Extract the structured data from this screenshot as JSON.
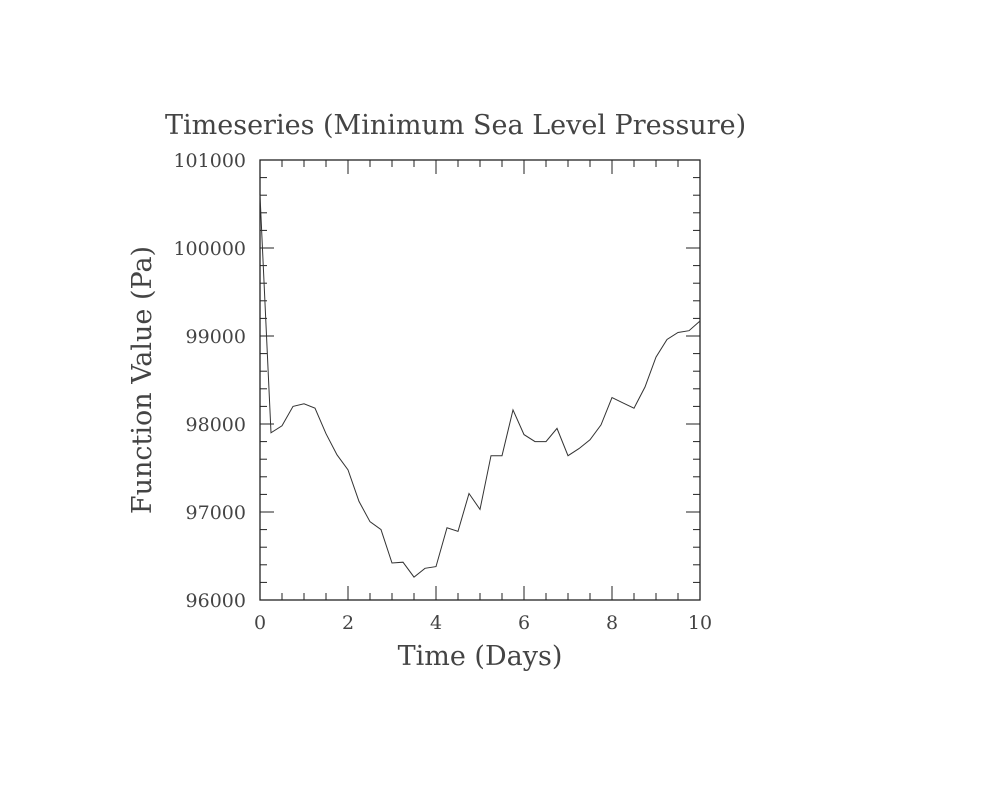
{
  "chart_data": {
    "type": "line",
    "title": "Timeseries (Minimum Sea Level Pressure)",
    "xlabel": "Time (Days)",
    "ylabel": "Function Value (Pa)",
    "xlim": [
      0,
      10
    ],
    "ylim": [
      96000,
      101000
    ],
    "x_ticks": [
      "0",
      "2",
      "4",
      "6",
      "8",
      "10"
    ],
    "y_ticks": [
      "96000",
      "97000",
      "98000",
      "99000",
      "100000",
      "101000"
    ],
    "grid": false,
    "line_color": "#333333",
    "axis_color": "#222222",
    "series": [
      {
        "x": [
          0,
          0.25,
          0.5,
          0.75,
          1.0,
          1.25,
          1.5,
          1.75,
          2.0,
          2.25,
          2.5,
          2.75,
          3.0,
          3.25,
          3.5,
          3.75,
          4.0,
          4.25,
          4.5,
          4.75,
          5.0,
          5.25,
          5.5,
          5.75,
          6.0,
          6.25,
          6.5,
          6.75,
          7.0,
          7.25,
          7.5,
          7.75,
          8.0,
          8.25,
          8.5,
          8.75,
          9.0,
          9.25,
          9.5,
          9.75,
          10.0
        ],
        "y": [
          100600,
          97900,
          97980,
          98200,
          98230,
          98180,
          97890,
          97650,
          97480,
          97120,
          96890,
          96800,
          96420,
          96430,
          96260,
          96360,
          96380,
          96820,
          96780,
          97210,
          97030,
          97640,
          97640,
          98160,
          97880,
          97800,
          97800,
          97950,
          97640,
          97720,
          97820,
          97990,
          98300,
          98240,
          98180,
          98420,
          98760,
          98960,
          99040,
          99060,
          99170
        ]
      }
    ]
  }
}
